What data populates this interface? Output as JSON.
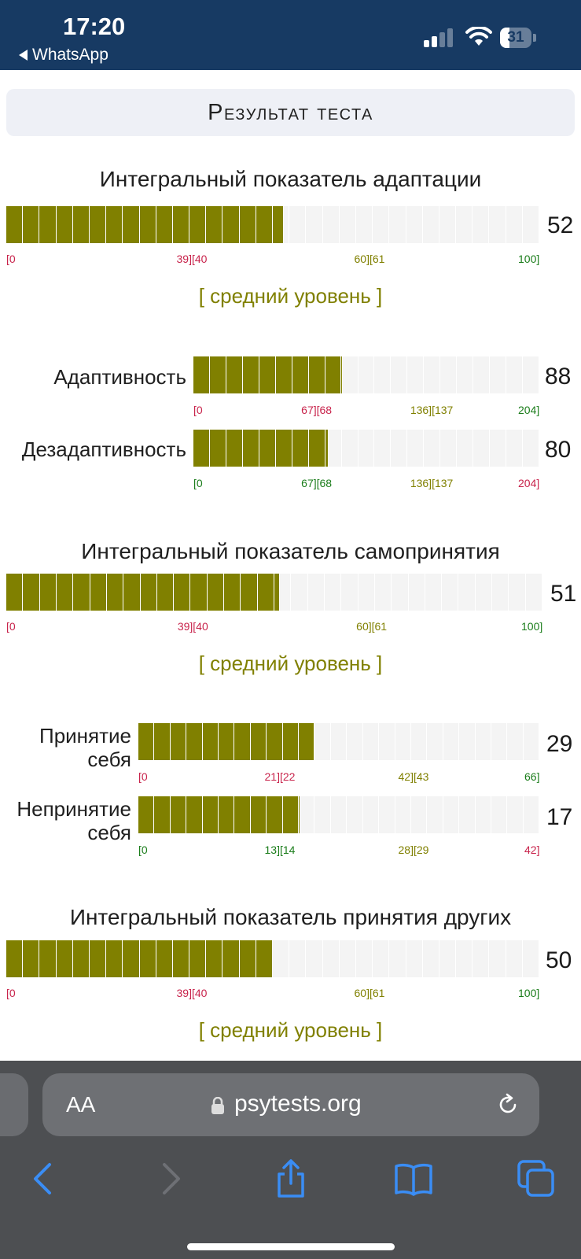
{
  "status_bar": {
    "time": "17:20",
    "back_app": "WhatsApp",
    "battery": "31",
    "battery_level": 0.31
  },
  "header": {
    "title": "Результат теста"
  },
  "sections": [
    {
      "title": "Интегральный показатель адаптации",
      "score": "52",
      "fill_fraction": 0.52,
      "ticks": [
        {
          "text": "[0",
          "color": "#c8234b"
        },
        {
          "text": "39][40",
          "color": "#c8234b"
        },
        {
          "text": "60][61",
          "color": "#808000"
        },
        {
          "text": "100]",
          "color": "#1b7d1b"
        }
      ],
      "level": "[ средний уровень ]",
      "subscales": [
        {
          "label": "Адаптивность",
          "score": "88",
          "fill_fraction": 0.431,
          "ticks": [
            {
              "text": "[0",
              "color": "#c8234b"
            },
            {
              "text": "67][68",
              "color": "#c8234b"
            },
            {
              "text": "136][137",
              "color": "#808000"
            },
            {
              "text": "204]",
              "color": "#1b7d1b"
            }
          ]
        },
        {
          "label": "Дезадаптивность",
          "score": "80",
          "fill_fraction": 0.392,
          "ticks": [
            {
              "text": "[0",
              "color": "#1b7d1b"
            },
            {
              "text": "67][68",
              "color": "#1b7d1b"
            },
            {
              "text": "136][137",
              "color": "#808000"
            },
            {
              "text": "204]",
              "color": "#c8234b"
            }
          ]
        }
      ]
    },
    {
      "title": "Интегральный показатель самопринятия",
      "score": "51",
      "fill_fraction": 0.51,
      "ticks": [
        {
          "text": "[0",
          "color": "#c8234b"
        },
        {
          "text": "39][40",
          "color": "#c8234b"
        },
        {
          "text": "60][61",
          "color": "#808000"
        },
        {
          "text": "100]",
          "color": "#1b7d1b"
        }
      ],
      "level": "[ средний уровень ]",
      "subscales": [
        {
          "label": "Принятие себя",
          "label_lines": [
            "Принятие",
            "себя"
          ],
          "score": "29",
          "fill_fraction": 0.439,
          "ticks": [
            {
              "text": "[0",
              "color": "#c8234b"
            },
            {
              "text": "21][22",
              "color": "#c8234b"
            },
            {
              "text": "42][43",
              "color": "#808000"
            },
            {
              "text": "66]",
              "color": "#1b7d1b"
            }
          ]
        },
        {
          "label": "Непринятие себя",
          "label_lines": [
            "Непринятие",
            "себя"
          ],
          "score": "17",
          "fill_fraction": 0.405,
          "ticks": [
            {
              "text": "[0",
              "color": "#1b7d1b"
            },
            {
              "text": "13][14",
              "color": "#1b7d1b"
            },
            {
              "text": "28][29",
              "color": "#808000"
            },
            {
              "text": "42]",
              "color": "#c8234b"
            }
          ]
        }
      ]
    },
    {
      "title": "Интегральный показатель принятия других",
      "score": "50",
      "fill_fraction": 0.5,
      "ticks": [
        {
          "text": "[0",
          "color": "#c8234b"
        },
        {
          "text": "39][40",
          "color": "#c8234b"
        },
        {
          "text": "60][61",
          "color": "#808000"
        },
        {
          "text": "100]",
          "color": "#1b7d1b"
        }
      ],
      "level": "[ средний уровень ]"
    }
  ],
  "colors": {
    "bar_fill": "#808000",
    "bar_track": "#f4f4f4",
    "low": "#c8234b",
    "mid": "#808000",
    "high": "#1b7d1b",
    "status_bar_bg": "#173a63"
  },
  "browser": {
    "text_size_button": "AA",
    "url": "psytests.org",
    "icons": [
      "back-icon",
      "forward-icon",
      "share-icon",
      "bookmarks-icon",
      "tabs-icon",
      "lock-icon",
      "reload-icon"
    ]
  }
}
